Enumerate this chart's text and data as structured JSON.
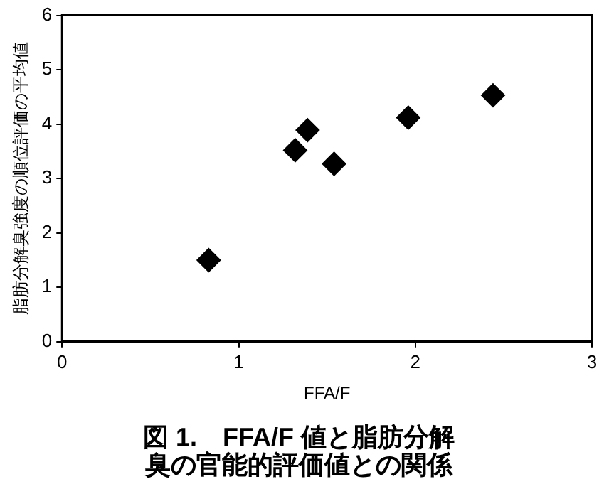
{
  "chart_data": {
    "type": "scatter",
    "title": "図 1.　FFA/F 値と脂肪分解臭の官能的評価値との関係",
    "xlabel": "FFA/F",
    "ylabel": "脂肪分解臭強度の順位評価の平均値",
    "x": [
      0.83,
      1.32,
      1.39,
      1.54,
      1.96,
      2.44
    ],
    "series": [
      {
        "color": "#000000",
        "values": [
          1.5,
          3.52,
          3.89,
          3.27,
          4.12,
          4.53
        ]
      }
    ],
    "xlim": [
      0,
      3
    ],
    "xticks": [
      0,
      1,
      2,
      3
    ],
    "ylim": [
      0,
      6
    ],
    "yticks": [
      0,
      1,
      2,
      3,
      4,
      5,
      6
    ],
    "grid": false,
    "legend": false,
    "marker": "diamond"
  }
}
